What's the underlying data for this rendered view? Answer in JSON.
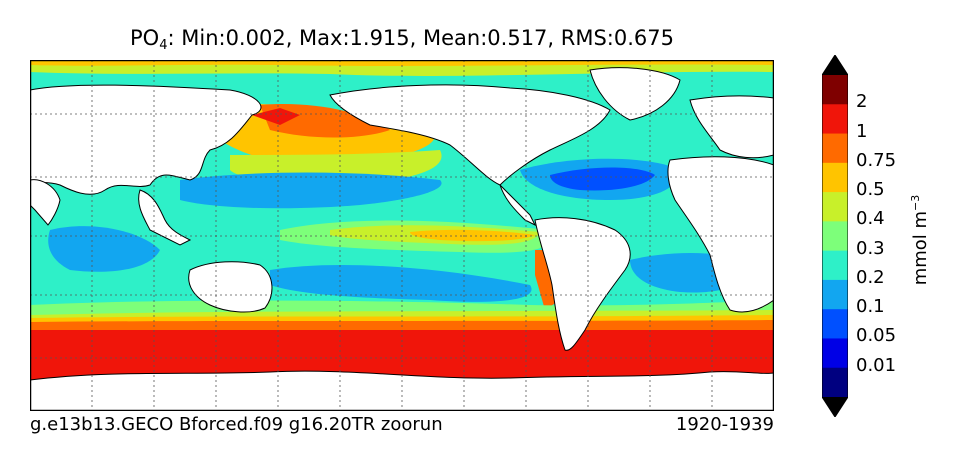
{
  "title": {
    "var_main": "PO",
    "var_sub": "4",
    "stats": ": Min:0.002, Max:1.915, Mean:0.517, RMS:0.675"
  },
  "footer": {
    "case": "g.e13b13.GECO Bforced.f09 g16.20TR zoorun",
    "period": "1920-1939"
  },
  "colorbar": {
    "unit_main": "mmol m",
    "unit_exp": "−3",
    "labels": [
      "2",
      "1",
      "0.75",
      "0.5",
      "0.4",
      "0.3",
      "0.2",
      "0.1",
      "0.05",
      "0.01"
    ],
    "colors": [
      "#7f0000",
      "#f0150a",
      "#ff6a00",
      "#ffc400",
      "#c8f02a",
      "#7dff7a",
      "#2ef0c8",
      "#12a6f0",
      "#0050ff",
      "#0000e6",
      "#000080"
    ]
  }
}
